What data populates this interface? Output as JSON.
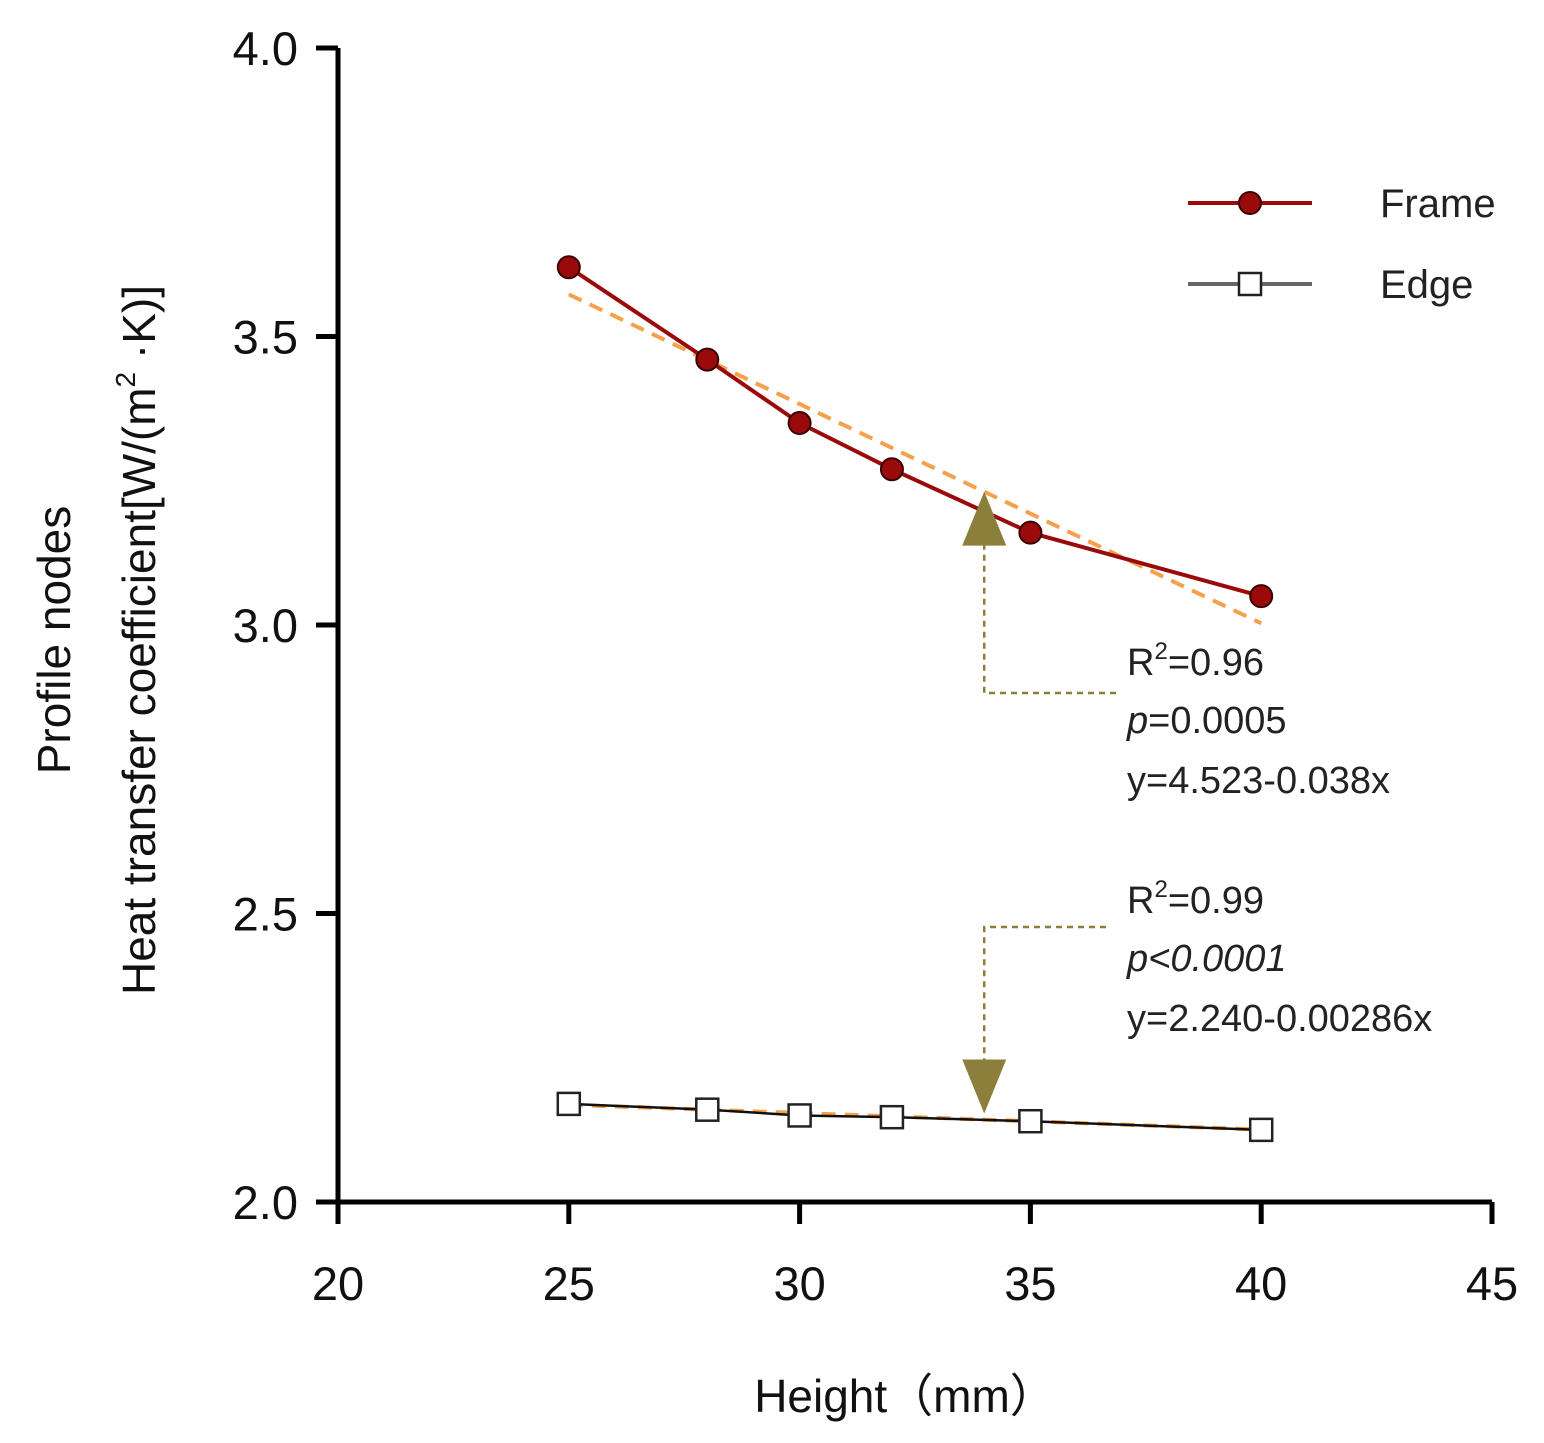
{
  "chart_data": {
    "type": "line",
    "xlabel": "Height（mm）",
    "ylabel_line1": "Profile nodes",
    "ylabel_line2": "Heat transfer coefficient[W/(m",
    "ylabel_sup": "2",
    "ylabel_tail": " ·K)]",
    "xlim": [
      20,
      45
    ],
    "ylim": [
      2.0,
      4.0
    ],
    "x_ticks": [
      20,
      25,
      30,
      35,
      40,
      45
    ],
    "x_tick_labels": [
      "20",
      "25",
      "30",
      "35",
      "40",
      "45"
    ],
    "y_ticks": [
      2.0,
      2.5,
      3.0,
      3.5,
      4.0
    ],
    "y_tick_labels": [
      "2.0",
      "2.5",
      "3.0",
      "3.5",
      "4.0"
    ],
    "grid": false,
    "legend_position": "top-right",
    "series": [
      {
        "name": "Frame",
        "marker": "filled-circle",
        "color": "#9b0a0a",
        "x": [
          25,
          28,
          30,
          32,
          35,
          40
        ],
        "y": [
          3.62,
          3.46,
          3.35,
          3.27,
          3.16,
          3.05
        ],
        "fit": {
          "intercept": 4.523,
          "slope": -0.038,
          "x_range": [
            25,
            40
          ]
        }
      },
      {
        "name": "Edge",
        "marker": "open-square",
        "color": "#111111",
        "x": [
          25,
          28,
          30,
          32,
          35,
          40
        ],
        "y": [
          2.17,
          2.16,
          2.15,
          2.147,
          2.14,
          2.125
        ],
        "fit": {
          "intercept": 2.24,
          "slope": -0.00286,
          "x_range": [
            25,
            40
          ]
        }
      }
    ],
    "fit_line_color": "#f5a04a",
    "arrow_color": "#8c7f3c",
    "annotations": [
      {
        "r2_prefix": "R",
        "r2_sup": "2",
        "r2_value": "=0.96",
        "p_italic": "p",
        "p_rest": "=0.0005",
        "p_rest_italic": false,
        "equation": "y=4.523-0.038x",
        "arrow_target": {
          "x": 34,
          "y": 3.2
        }
      },
      {
        "r2_prefix": "R",
        "r2_sup": "2",
        "r2_value": "=0.99",
        "p_italic": "p",
        "p_rest": "<0.0001",
        "p_rest_italic": true,
        "equation": "y=2.240-0.00286x",
        "arrow_target": {
          "x": 34,
          "y": 2.15
        }
      }
    ]
  }
}
